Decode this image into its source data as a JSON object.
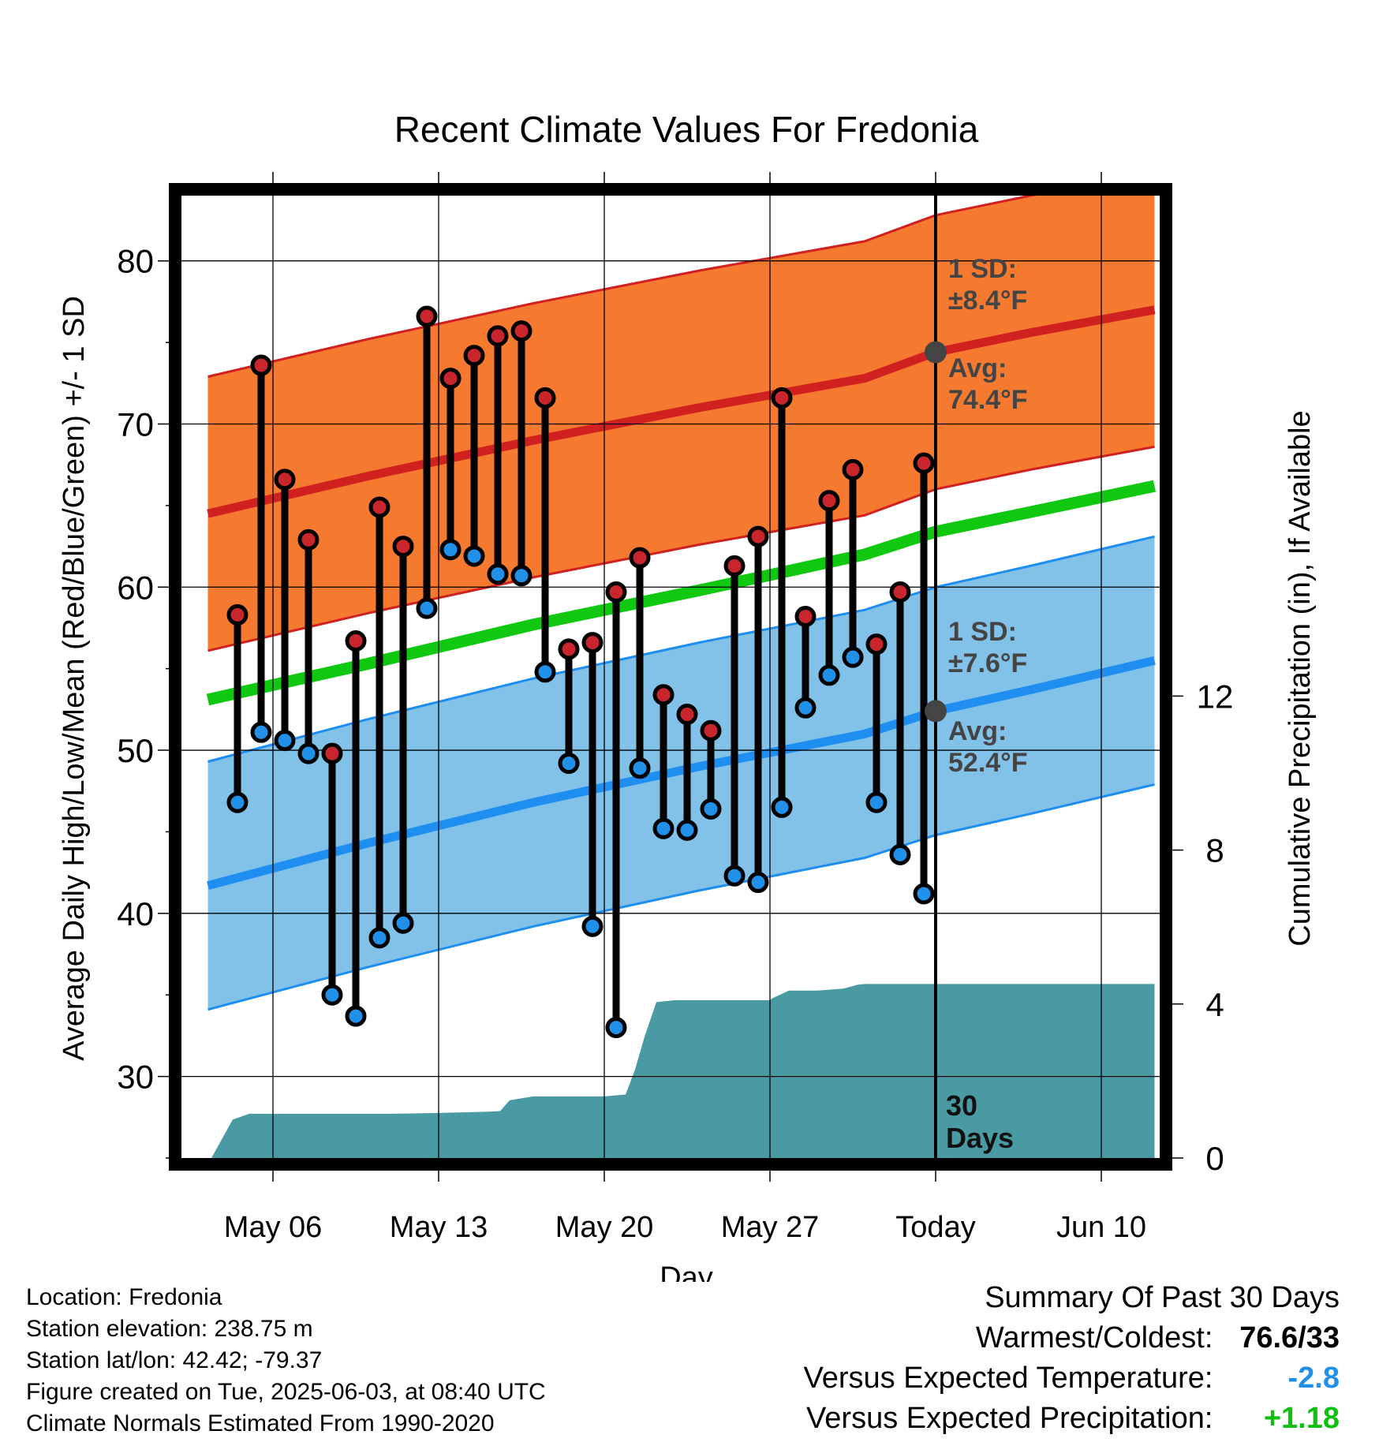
{
  "chart_data": {
    "type": "line",
    "title": "Recent Climate Values For Fredonia",
    "xlabel": "Day",
    "ylabel_left": "Average Daily High/Low/Mean (Red/Blue/Green) +/- 1 SD",
    "ylabel_right": "Cumulative Precipitation (in), If Available",
    "x_tick_labels": [
      "May 06",
      "May 13",
      "May 20",
      "May 27",
      "Today",
      "Jun 10"
    ],
    "y_left_ticks": [
      "30",
      "40",
      "50",
      "60",
      "70",
      "80"
    ],
    "y_left_range": [
      25,
      84
    ],
    "y_right_ticks": [
      "0",
      "4",
      "8",
      "12"
    ],
    "y_right_range": [
      0,
      25
    ],
    "normals": {
      "x_days": [
        -30.75,
        -24,
        -17,
        -10,
        -3,
        0,
        4,
        9.25
      ],
      "high_avg": [
        64.5,
        66.8,
        69.0,
        71.0,
        72.8,
        74.4,
        75.6,
        77.0
      ],
      "high_sd": 8.4,
      "low_avg": [
        41.7,
        44.3,
        46.8,
        49.0,
        51.0,
        52.4,
        53.7,
        55.5
      ],
      "low_sd": 7.6,
      "mean_avg": [
        53.1,
        55.3,
        57.7,
        59.8,
        62.0,
        63.4,
        64.6,
        66.2
      ]
    },
    "observations": {
      "days_ago": [
        -30,
        -29,
        -28,
        -27,
        -26,
        -25,
        -24,
        -23,
        -22,
        -21,
        -20,
        -19,
        -18,
        -17,
        -16,
        -15,
        -14,
        -13,
        -12,
        -11,
        -10,
        -9,
        -8,
        -7,
        -6,
        -5,
        -4,
        -3,
        -2,
        -1
      ],
      "high": [
        58.3,
        73.6,
        66.6,
        62.9,
        49.8,
        56.7,
        64.9,
        62.5,
        76.6,
        72.8,
        74.2,
        75.4,
        75.7,
        71.6,
        56.2,
        56.6,
        59.7,
        61.8,
        53.4,
        52.2,
        51.2,
        61.3,
        63.1,
        71.6,
        58.2,
        65.3,
        67.2,
        56.5,
        59.7,
        67.6
      ],
      "low": [
        46.8,
        51.1,
        50.6,
        49.8,
        35.0,
        33.7,
        38.5,
        39.4,
        58.7,
        62.3,
        61.9,
        60.8,
        60.7,
        54.8,
        49.2,
        39.2,
        33.0,
        48.9,
        45.2,
        45.1,
        46.4,
        42.3,
        41.9,
        46.5,
        52.6,
        54.6,
        55.7,
        46.8,
        43.6,
        41.2
      ]
    },
    "precip_cumulative": {
      "x_days": [
        -30.6,
        -29.7,
        -29,
        -27,
        -25,
        -23,
        -21,
        -19,
        -18.4,
        -18,
        -17,
        -16,
        -15,
        -14,
        -13.1,
        -12.7,
        -12.3,
        -11.8,
        -11,
        -10,
        -9,
        -8,
        -7,
        -6.9,
        -6.2,
        -5,
        -3.9,
        -3.3,
        -3,
        -2,
        -1,
        0,
        9.25
      ],
      "values": [
        0.0,
        1.0,
        1.15,
        1.15,
        1.15,
        1.15,
        1.17,
        1.2,
        1.22,
        1.5,
        1.6,
        1.6,
        1.6,
        1.6,
        1.65,
        2.3,
        3.15,
        4.05,
        4.1,
        4.1,
        4.1,
        4.1,
        4.1,
        4.15,
        4.35,
        4.35,
        4.4,
        4.5,
        4.52,
        4.52,
        4.52,
        4.52,
        4.52
      ]
    },
    "annotations": {
      "high_sd_label": "1 SD:",
      "high_sd_value": "±8.4°F",
      "high_avg_label": "Avg:",
      "high_avg_value": "74.4°F",
      "high_avg_today": 74.4,
      "low_sd_label": "1 SD:",
      "low_sd_value": "±7.6°F",
      "low_avg_label": "Avg:",
      "low_avg_value": "52.4°F",
      "low_avg_today": 52.4,
      "period_number": "30",
      "period_unit": "Days"
    },
    "colors": {
      "high_band": "#f57a30",
      "high_line": "#d02020",
      "low_band": "#82c1e8",
      "low_line": "#1e8ef0",
      "mean_line": "#10c810",
      "precip": "#4a9aa4",
      "high_dot": "#c8262c",
      "low_dot": "#2090e8",
      "annotation_text": "#444444"
    }
  },
  "info": {
    "location": "Location: Fredonia",
    "elevation": "Station elevation: 238.75 m",
    "latlon": "Station lat/lon: 42.42; -79.37",
    "created": "Figure created on Tue, 2025-06-03, at 08:40 UTC",
    "normals": "Climate Normals Estimated From 1990-2020"
  },
  "summary": {
    "title": "Summary Of Past 30 Days",
    "warmest_label": "Warmest/Coldest:",
    "warmest_value": "76.6/33",
    "temp_label": "Versus Expected Temperature:",
    "temp_value": "-2.8",
    "temp_color": "#2090e8",
    "precip_label": "Versus Expected Precipitation:",
    "precip_value": "+1.18",
    "precip_color": "#10c010"
  }
}
